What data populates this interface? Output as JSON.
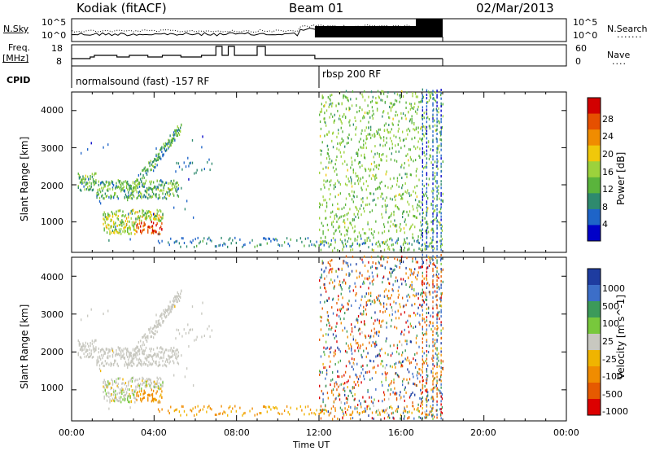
{
  "header": {
    "station": "Kodiak (fitACF)",
    "beam": "Beam 01",
    "date": "02/Mar/2013"
  },
  "top_panels": {
    "nsky_label": "N.Sky",
    "nsearch_label": "N.Search",
    "freq_label_line1": "Freq.",
    "freq_label_line2": "[MHz]",
    "nave_label": "Nave",
    "cpid_label": "CPID",
    "noise_ticks_left": [
      "10^5",
      "10^0"
    ],
    "noise_ticks_right": [
      "10^5",
      "10^0"
    ],
    "freq_ticks": [
      "18",
      "8"
    ],
    "nave_ticks": [
      "60",
      "0"
    ],
    "cpid_segments": [
      {
        "name": "normalsound (fast) -157 RF",
        "start_hour": 0
      },
      {
        "name": "rbsp 200 RF",
        "start_hour": 12
      }
    ]
  },
  "chart_data": [
    {
      "type": "heatmap",
      "title": "",
      "xlabel": "",
      "ylabel": "Slant Range [km]",
      "xlim_hours": [
        0,
        24
      ],
      "ylim_km": [
        180,
        4500
      ],
      "yticks": [
        "4000",
        "3000",
        "2000",
        "1000"
      ],
      "colorbar": {
        "label": "Power [dB]",
        "ticks": [
          "28",
          "24",
          "20",
          "16",
          "12",
          "8",
          "4"
        ],
        "colors": [
          "#0000c8",
          "#1e64c8",
          "#2e8a6e",
          "#5ab43c",
          "#9cd23c",
          "#f0c80a",
          "#f08c00",
          "#e65000",
          "#d20000"
        ]
      },
      "features": [
        {
          "region": "backscatter patches",
          "hours": [
            0.3,
            6.8
          ],
          "range_km": [
            600,
            3500
          ],
          "peak_power_db": 28
        },
        {
          "region": "ground scatter band",
          "hours": [
            4,
            17.5
          ],
          "range_km": [
            300,
            550
          ],
          "typical_power_db": 8
        },
        {
          "region": "dense noisy scatter",
          "hours": [
            12,
            18
          ],
          "range_km": [
            200,
            4500
          ],
          "typical_power_db": 14
        }
      ]
    },
    {
      "type": "heatmap",
      "title": "",
      "xlabel": "Time UT",
      "ylabel": "Slant Range [km]",
      "xlim_hours": [
        0,
        24
      ],
      "ylim_km": [
        180,
        4500
      ],
      "yticks": [
        "4000",
        "3000",
        "2000",
        "1000"
      ],
      "xticks": [
        "00:00",
        "04:00",
        "08:00",
        "12:00",
        "16:00",
        "20:00",
        "00:00"
      ],
      "colorbar": {
        "label": "Velocity [m s^-1]",
        "ticks": [
          "1000",
          "500",
          "100",
          "25",
          "-25",
          "-100",
          "-500",
          "-1000"
        ],
        "colors": [
          "#1e3ca0",
          "#3c6ec8",
          "#3c9a5a",
          "#78c83c",
          "#c8c8c0",
          "#f0b400",
          "#f08c00",
          "#e65a00",
          "#dc0000"
        ]
      },
      "features": [
        {
          "region": "low-velocity scatter",
          "hours": [
            0.3,
            6.8
          ],
          "range_km": [
            600,
            3500
          ],
          "typical_velocity": 0
        },
        {
          "region": "mixed velocity noise",
          "hours": [
            12,
            18
          ],
          "range_km": [
            200,
            4500
          ],
          "typical_velocity": 0
        }
      ]
    }
  ]
}
